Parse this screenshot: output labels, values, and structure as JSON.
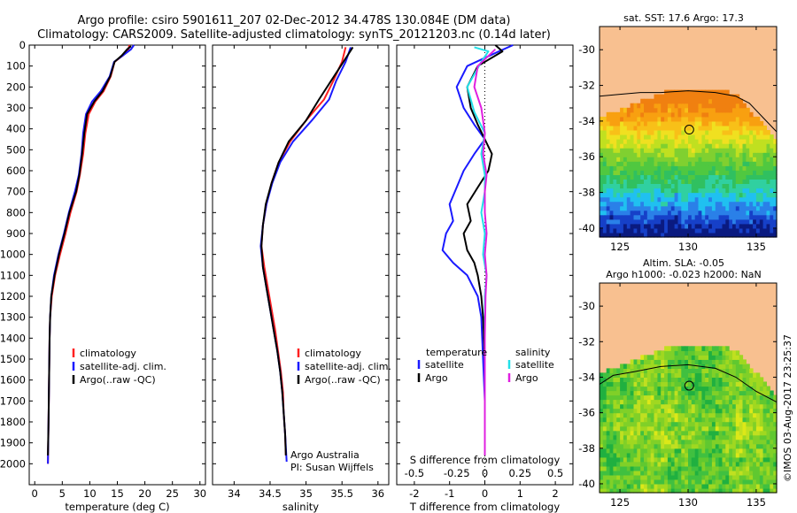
{
  "header": {
    "line1": "Argo profile: csiro 5901611_207 02-Dec-2012 34.478S 130.084E (DM data)",
    "line2": "Climatology: CARS2009. Satellite-adjusted climatology: synTS_20121203.nc (0.14d later)"
  },
  "colors": {
    "climatology": "#ff2020",
    "satellite": "#1a1aff",
    "argo": "#000000",
    "sal_satellite": "#22e0e8",
    "sal_argo": "#e020e0",
    "land": "#f8c090"
  },
  "depth_axis": {
    "ticks": [
      0,
      100,
      200,
      300,
      400,
      500,
      600,
      700,
      800,
      900,
      1000,
      1100,
      1200,
      1300,
      1400,
      1500,
      1600,
      1700,
      1800,
      1900,
      2000
    ],
    "ylim": [
      0,
      2100
    ]
  },
  "chart_data": [
    {
      "type": "line",
      "xlabel": "temperature (deg C)",
      "xlim": [
        -1,
        31
      ],
      "xticks": [
        0,
        5,
        10,
        15,
        20,
        25,
        30
      ],
      "legend": [
        "climatology",
        "satellite-adj. clim.",
        "Argo(..raw -QC)"
      ],
      "series": [
        {
          "name": "climatology",
          "points": [
            [
              17.2,
              0
            ],
            [
              17.0,
              20
            ],
            [
              16.0,
              50
            ],
            [
              14.5,
              80
            ],
            [
              13.8,
              150
            ],
            [
              12.5,
              220
            ],
            [
              11.0,
              270
            ],
            [
              9.8,
              330
            ],
            [
              9.2,
              420
            ],
            [
              8.8,
              520
            ],
            [
              8.2,
              620
            ],
            [
              7.6,
              700
            ],
            [
              6.5,
              800
            ],
            [
              5.6,
              900
            ],
            [
              4.6,
              1000
            ],
            [
              3.7,
              1100
            ],
            [
              3.1,
              1200
            ],
            [
              2.8,
              1300
            ],
            [
              2.7,
              1400
            ],
            [
              2.6,
              1600
            ],
            [
              2.5,
              1800
            ],
            [
              2.4,
              2000
            ]
          ]
        },
        {
          "name": "satellite-adj. clim.",
          "points": [
            [
              18.0,
              0
            ],
            [
              17.5,
              20
            ],
            [
              16.0,
              50
            ],
            [
              14.4,
              80
            ],
            [
              13.6,
              150
            ],
            [
              12.0,
              220
            ],
            [
              10.4,
              270
            ],
            [
              9.3,
              330
            ],
            [
              8.8,
              420
            ],
            [
              8.5,
              520
            ],
            [
              8.0,
              620
            ],
            [
              7.3,
              700
            ],
            [
              6.2,
              800
            ],
            [
              5.3,
              900
            ],
            [
              4.3,
              1000
            ],
            [
              3.5,
              1100
            ],
            [
              3.0,
              1200
            ],
            [
              2.8,
              1300
            ],
            [
              2.7,
              1400
            ],
            [
              2.6,
              1600
            ],
            [
              2.5,
              1800
            ],
            [
              2.4,
              2000
            ]
          ]
        },
        {
          "name": "Argo(..raw -QC)",
          "points": [
            [
              17.5,
              5
            ],
            [
              16.8,
              20
            ],
            [
              15.8,
              50
            ],
            [
              14.5,
              80
            ],
            [
              13.7,
              150
            ],
            [
              12.3,
              220
            ],
            [
              10.8,
              270
            ],
            [
              9.5,
              330
            ],
            [
              9.0,
              420
            ],
            [
              8.6,
              520
            ],
            [
              8.1,
              620
            ],
            [
              7.5,
              700
            ],
            [
              6.3,
              800
            ],
            [
              5.4,
              900
            ],
            [
              4.4,
              1000
            ],
            [
              3.6,
              1100
            ],
            [
              3.0,
              1200
            ],
            [
              2.8,
              1300
            ],
            [
              2.7,
              1400
            ],
            [
              2.6,
              1600
            ],
            [
              2.5,
              1800
            ],
            [
              2.4,
              1960
            ]
          ]
        }
      ]
    },
    {
      "type": "line",
      "xlabel": "salinity",
      "xlim": [
        33.7,
        36.15
      ],
      "xticks": [
        34,
        34.5,
        35,
        35.5,
        36
      ],
      "legend": [
        "climatology",
        "satellite-adj. clim.",
        "Argo(..raw -QC)"
      ],
      "annotation": [
        "Argo Australia",
        "PI: Susan Wijffels"
      ],
      "series": [
        {
          "name": "climatology",
          "points": [
            [
              35.55,
              10
            ],
            [
              35.5,
              80
            ],
            [
              35.38,
              170
            ],
            [
              35.25,
              260
            ],
            [
              35.0,
              360
            ],
            [
              34.78,
              460
            ],
            [
              34.62,
              560
            ],
            [
              34.52,
              660
            ],
            [
              34.45,
              760
            ],
            [
              34.4,
              860
            ],
            [
              34.38,
              960
            ],
            [
              34.42,
              1060
            ],
            [
              34.47,
              1160
            ],
            [
              34.52,
              1260
            ],
            [
              34.57,
              1360
            ],
            [
              34.61,
              1460
            ],
            [
              34.65,
              1560
            ],
            [
              34.68,
              1660
            ],
            [
              34.69,
              1760
            ],
            [
              34.71,
              1860
            ],
            [
              34.72,
              1960
            ]
          ]
        },
        {
          "name": "satellite-adj. clim.",
          "points": [
            [
              35.62,
              10
            ],
            [
              35.55,
              80
            ],
            [
              35.42,
              170
            ],
            [
              35.32,
              260
            ],
            [
              35.08,
              360
            ],
            [
              34.82,
              460
            ],
            [
              34.64,
              560
            ],
            [
              34.53,
              660
            ],
            [
              34.45,
              760
            ],
            [
              34.4,
              860
            ],
            [
              34.37,
              960
            ],
            [
              34.4,
              1060
            ],
            [
              34.45,
              1160
            ],
            [
              34.5,
              1260
            ],
            [
              34.55,
              1360
            ],
            [
              34.6,
              1460
            ],
            [
              34.64,
              1560
            ],
            [
              34.67,
              1660
            ],
            [
              34.69,
              1760
            ],
            [
              34.71,
              1860
            ],
            [
              34.73,
              1990
            ]
          ]
        },
        {
          "name": "Argo(..raw -QC)",
          "points": [
            [
              35.65,
              10
            ],
            [
              35.52,
              80
            ],
            [
              35.35,
              170
            ],
            [
              35.18,
              260
            ],
            [
              35.0,
              360
            ],
            [
              34.76,
              460
            ],
            [
              34.62,
              560
            ],
            [
              34.52,
              660
            ],
            [
              34.44,
              760
            ],
            [
              34.4,
              860
            ],
            [
              34.38,
              960
            ],
            [
              34.4,
              1060
            ],
            [
              34.45,
              1160
            ],
            [
              34.5,
              1260
            ],
            [
              34.55,
              1360
            ],
            [
              34.6,
              1460
            ],
            [
              34.64,
              1560
            ],
            [
              34.67,
              1660
            ],
            [
              34.69,
              1760
            ],
            [
              34.71,
              1860
            ],
            [
              34.72,
              1960
            ]
          ]
        }
      ]
    },
    {
      "type": "line",
      "xlabel": "T difference from climatology",
      "xlabel_top": "S difference from climatology",
      "xlim": [
        -2.5,
        2.5
      ],
      "xticks": [
        -2,
        -1,
        0,
        1,
        2
      ],
      "xticks_top": [
        "-0.5",
        "-0.25",
        "0",
        "0.25",
        "0.5"
      ],
      "legend_temperature": {
        "title": "temperature",
        "items": [
          "satellite",
          "Argo"
        ]
      },
      "legend_salinity": {
        "title": "salinity",
        "items": [
          "satellite",
          "Argo"
        ]
      },
      "series": [
        {
          "name": "temperature satellite",
          "points": [
            [
              0.8,
              0
            ],
            [
              0.4,
              30
            ],
            [
              -0.5,
              100
            ],
            [
              -0.8,
              200
            ],
            [
              -0.6,
              300
            ],
            [
              -0.3,
              380
            ],
            [
              0.0,
              450
            ],
            [
              -0.3,
              520
            ],
            [
              -0.6,
              600
            ],
            [
              -0.8,
              680
            ],
            [
              -1.0,
              760
            ],
            [
              -0.9,
              840
            ],
            [
              -1.1,
              900
            ],
            [
              -1.2,
              980
            ],
            [
              -0.9,
              1040
            ],
            [
              -0.5,
              1100
            ],
            [
              -0.2,
              1200
            ],
            [
              -0.1,
              1300
            ],
            [
              -0.05,
              1500
            ],
            [
              0.0,
              1700
            ],
            [
              0.0,
              1800
            ]
          ]
        },
        {
          "name": "temperature Argo",
          "points": [
            [
              0.3,
              0
            ],
            [
              0.5,
              30
            ],
            [
              -0.2,
              100
            ],
            [
              -0.5,
              200
            ],
            [
              -0.4,
              300
            ],
            [
              -0.2,
              380
            ],
            [
              0.0,
              450
            ],
            [
              0.2,
              520
            ],
            [
              0.1,
              600
            ],
            [
              -0.2,
              680
            ],
            [
              -0.5,
              760
            ],
            [
              -0.4,
              840
            ],
            [
              -0.6,
              900
            ],
            [
              -0.5,
              980
            ],
            [
              -0.3,
              1040
            ],
            [
              -0.2,
              1100
            ],
            [
              -0.1,
              1200
            ],
            [
              -0.05,
              1300
            ],
            [
              0.0,
              1500
            ],
            [
              0.0,
              1700
            ],
            [
              0.0,
              1960
            ]
          ]
        },
        {
          "name": "salinity satellite",
          "points": [
            [
              -0.3,
              10
            ],
            [
              0.1,
              30
            ],
            [
              -0.1,
              80
            ],
            [
              -0.5,
              200
            ],
            [
              -0.3,
              320
            ],
            [
              0.0,
              420
            ],
            [
              -0.1,
              520
            ],
            [
              0.0,
              620
            ],
            [
              0.0,
              700
            ],
            [
              -0.1,
              800
            ],
            [
              0.0,
              900
            ],
            [
              -0.05,
              1000
            ],
            [
              0.05,
              1100
            ],
            [
              0.0,
              1200
            ],
            [
              0.0,
              1400
            ],
            [
              0.0,
              1700
            ],
            [
              0.0,
              1800
            ]
          ]
        },
        {
          "name": "salinity Argo",
          "points": [
            [
              0.3,
              20
            ],
            [
              -0.2,
              100
            ],
            [
              -0.3,
              200
            ],
            [
              -0.1,
              300
            ],
            [
              0.0,
              420
            ],
            [
              -0.05,
              520
            ],
            [
              0.05,
              620
            ],
            [
              0.0,
              700
            ],
            [
              0.0,
              800
            ],
            [
              0.05,
              900
            ],
            [
              0.0,
              1000
            ],
            [
              0.05,
              1100
            ],
            [
              0.02,
              1200
            ],
            [
              0.0,
              1400
            ],
            [
              0.0,
              1600
            ],
            [
              0.0,
              1800
            ],
            [
              0.0,
              1960
            ]
          ]
        }
      ]
    },
    {
      "type": "heatmap",
      "title": "sat. SST: 17.6  Argo: 17.3",
      "xticks": [
        125,
        130,
        135
      ],
      "yticks": [
        -30,
        -32,
        -34,
        -36,
        -38,
        -40
      ],
      "xlim": [
        123.5,
        136.5
      ],
      "ylim": [
        -40.5,
        -28.7
      ],
      "marker": [
        130.084,
        -34.478
      ],
      "contour": [
        [
          123.5,
          -32.6
        ],
        [
          125,
          -32.5
        ],
        [
          126.5,
          -32.4
        ],
        [
          128,
          -32.4
        ],
        [
          130,
          -32.3
        ],
        [
          132,
          -32.4
        ],
        [
          133.5,
          -32.6
        ],
        [
          134.5,
          -33.0
        ],
        [
          135.5,
          -33.8
        ],
        [
          136.5,
          -34.6
        ]
      ]
    },
    {
      "type": "heatmap",
      "title": "Altim. SLA: -0.05",
      "subtitle": "Argo h1000: -0.023 h2000: NaN",
      "xticks": [
        125,
        130,
        135
      ],
      "yticks": [
        -30,
        -32,
        -34,
        -36,
        -38,
        -40
      ],
      "xlim": [
        123.5,
        136.5
      ],
      "ylim": [
        -40.5,
        -28.7
      ],
      "marker": [
        130.084,
        -34.478
      ],
      "contour": [
        [
          123.5,
          -34.4
        ],
        [
          124.5,
          -33.9
        ],
        [
          126,
          -33.7
        ],
        [
          128,
          -33.4
        ],
        [
          130,
          -33.3
        ],
        [
          132,
          -33.5
        ],
        [
          133.5,
          -34.0
        ],
        [
          135,
          -34.8
        ],
        [
          136.5,
          -35.4
        ]
      ]
    }
  ],
  "credit": "©IMOS 03-Aug-2017 23:25:37"
}
